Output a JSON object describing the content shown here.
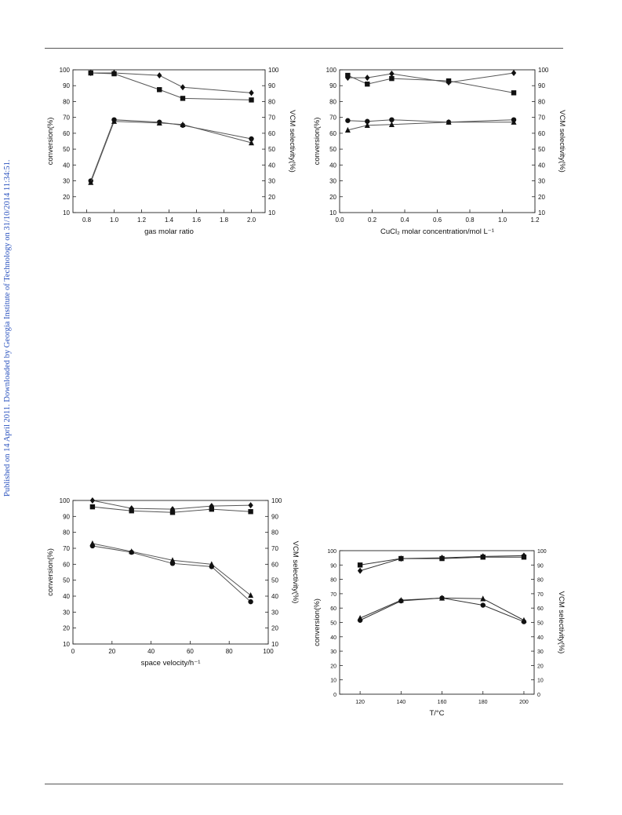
{
  "sidebar": {
    "published_text": "Published on 14 April 2011. Downloaded by Georgia Institute of Technology on 31/10/2014 11:34:51."
  },
  "chart_data": [
    {
      "type": "line",
      "xlabel": "gas molar ratio",
      "ylabel": "conversion(%)",
      "y2label": "VCM selectivity(%)",
      "xlim": [
        0.7,
        2.1
      ],
      "ylim": [
        10,
        100
      ],
      "xticks": [
        0.8,
        1.0,
        1.2,
        1.4,
        1.6,
        1.8,
        2.0
      ],
      "xtick_labels": [
        "0.8",
        "1.0",
        "1.2",
        "1.4",
        "1.6",
        "1.8",
        "2.0"
      ],
      "yticks": [
        10,
        20,
        30,
        40,
        50,
        60,
        70,
        80,
        90,
        100
      ],
      "series": [
        {
          "marker": "diamond",
          "x": [
            0.83,
            1.0,
            1.33,
            1.5,
            2.0
          ],
          "y": [
            98,
            98,
            96.5,
            89,
            85.5
          ]
        },
        {
          "marker": "square",
          "x": [
            0.83,
            1.0,
            1.33,
            1.5,
            2.0
          ],
          "y": [
            98,
            97.5,
            87.5,
            82,
            81
          ]
        },
        {
          "marker": "circle",
          "x": [
            0.83,
            1.0,
            1.33,
            1.5,
            2.0
          ],
          "y": [
            30,
            68.5,
            67,
            65,
            56.5
          ]
        },
        {
          "marker": "triangle",
          "x": [
            0.83,
            1.0,
            1.33,
            1.5,
            2.0
          ],
          "y": [
            29,
            67.5,
            66.5,
            65.5,
            54
          ]
        }
      ]
    },
    {
      "type": "line",
      "xlabel": "CuCl₂ molar concentration/mol L⁻¹",
      "ylabel": "conversion(%)",
      "y2label": "VCM selectivity(%)",
      "xlim": [
        0.0,
        1.2
      ],
      "ylim": [
        10,
        100
      ],
      "xticks": [
        0.0,
        0.2,
        0.4,
        0.6,
        0.8,
        1.0,
        1.2
      ],
      "xtick_labels": [
        "0.0",
        "0.2",
        "0.4",
        "0.6",
        "0.8",
        "1.0",
        "1.2"
      ],
      "yticks": [
        10,
        20,
        30,
        40,
        50,
        60,
        70,
        80,
        90,
        100
      ],
      "series": [
        {
          "marker": "diamond",
          "x": [
            0.05,
            0.17,
            0.32,
            0.67,
            1.07
          ],
          "y": [
            95,
            95,
            97.5,
            92,
            98
          ]
        },
        {
          "marker": "square",
          "x": [
            0.05,
            0.17,
            0.32,
            0.67,
            1.07
          ],
          "y": [
            96.5,
            91,
            94.5,
            93,
            85.5
          ]
        },
        {
          "marker": "circle",
          "x": [
            0.05,
            0.17,
            0.32,
            0.67,
            1.07
          ],
          "y": [
            68,
            67.5,
            68.5,
            67,
            68.5
          ]
        },
        {
          "marker": "triangle",
          "x": [
            0.05,
            0.17,
            0.32,
            0.67,
            1.07
          ],
          "y": [
            62,
            65,
            65.5,
            67,
            67
          ]
        }
      ]
    },
    {
      "type": "line",
      "xlabel": "space velocity/h⁻¹",
      "ylabel": "conversion(%)",
      "y2label": "VCM selectivity(%)",
      "xlim": [
        0,
        100
      ],
      "ylim": [
        10,
        100
      ],
      "xticks": [
        0,
        20,
        40,
        60,
        80,
        100
      ],
      "xtick_labels": [
        "0",
        "20",
        "40",
        "60",
        "80",
        "100"
      ],
      "yticks": [
        10,
        20,
        30,
        40,
        50,
        60,
        70,
        80,
        90,
        100
      ],
      "series": [
        {
          "marker": "diamond",
          "x": [
            10,
            30,
            51,
            71,
            91
          ],
          "y": [
            100,
            95,
            94.5,
            96.5,
            97
          ]
        },
        {
          "marker": "square",
          "x": [
            10,
            30,
            51,
            71,
            91
          ],
          "y": [
            96,
            93.5,
            92.5,
            94.5,
            93
          ]
        },
        {
          "marker": "triangle",
          "x": [
            10,
            30,
            51,
            71,
            91
          ],
          "y": [
            73,
            68,
            62.5,
            60,
            40.5
          ]
        },
        {
          "marker": "circle",
          "x": [
            10,
            30,
            51,
            71,
            91
          ],
          "y": [
            71.5,
            67.5,
            60.5,
            58.5,
            36.5
          ]
        }
      ]
    },
    {
      "type": "line",
      "xlabel": "T/°C",
      "ylabel": "conversion(%)",
      "y2label": "VCM selectivity(%)",
      "xlim": [
        110,
        205
      ],
      "ylim": [
        0,
        100
      ],
      "xticks": [
        120,
        140,
        160,
        180,
        200
      ],
      "xtick_labels": [
        "120",
        "140",
        "160",
        "180",
        "200"
      ],
      "yticks": [
        0,
        10,
        20,
        30,
        40,
        50,
        60,
        70,
        80,
        90,
        100
      ],
      "series": [
        {
          "marker": "square",
          "x": [
            120,
            140,
            160,
            180,
            200
          ],
          "y": [
            90,
            94.5,
            94.5,
            95.5,
            95.5
          ]
        },
        {
          "marker": "diamond",
          "x": [
            120,
            140,
            160,
            180,
            200
          ],
          "y": [
            86,
            94.5,
            95,
            96,
            96.5
          ]
        },
        {
          "marker": "triangle",
          "x": [
            120,
            140,
            160,
            180,
            200
          ],
          "y": [
            53,
            65.5,
            67,
            66.5,
            51.5
          ]
        },
        {
          "marker": "circle",
          "x": [
            120,
            140,
            160,
            180,
            200
          ],
          "y": [
            51.5,
            65,
            67,
            62,
            50.5
          ]
        }
      ]
    }
  ]
}
